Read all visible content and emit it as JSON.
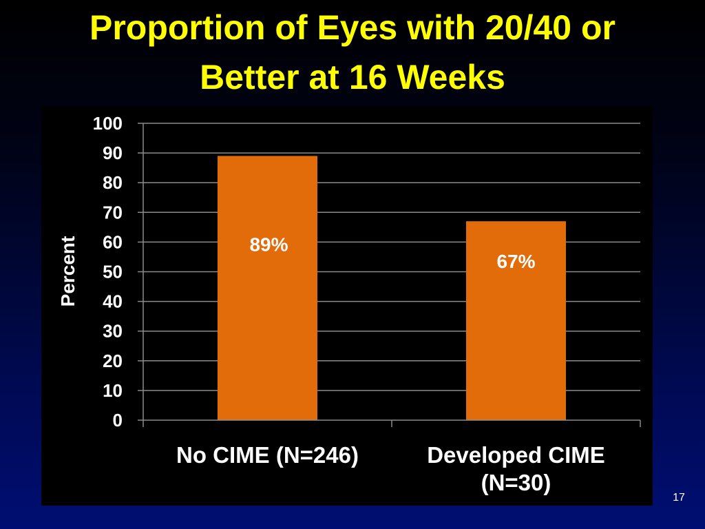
{
  "slide": {
    "title_line1": "Proportion of Eyes with 20/40 or",
    "title_line2": "Better at 16 Weeks",
    "slide_number": "17"
  },
  "colors": {
    "title": "#ffff00",
    "bar": "#e36c0a",
    "chart_background": "#000000",
    "gridline": "#8c8c8c",
    "text": "#ffffff"
  },
  "chart_data": {
    "type": "bar",
    "categories": [
      [
        "No CIME (N=246)"
      ],
      [
        "Developed CIME",
        "(N=30)"
      ]
    ],
    "values": [
      89,
      67
    ],
    "data_labels": [
      "89%",
      "67%"
    ],
    "ylabel": "Percent",
    "ylim": [
      0,
      100
    ],
    "yticks": [
      0,
      10,
      20,
      30,
      40,
      50,
      60,
      70,
      80,
      90,
      100
    ],
    "grid": true,
    "legend": "none"
  }
}
